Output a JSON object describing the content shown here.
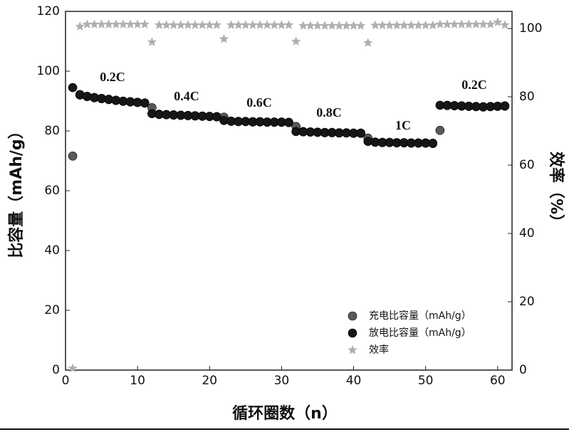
{
  "chart_data": {
    "type": "scatter",
    "xlabel": "循环圈数（n）",
    "ylabel": "比容量（mAh/g）",
    "y2label": "效率（%）",
    "x": [
      1,
      2,
      3,
      4,
      5,
      6,
      7,
      8,
      9,
      10,
      11,
      12,
      13,
      14,
      15,
      16,
      17,
      18,
      19,
      20,
      21,
      22,
      23,
      24,
      25,
      26,
      27,
      28,
      29,
      30,
      31,
      32,
      33,
      34,
      35,
      36,
      37,
      38,
      39,
      40,
      41,
      42,
      43,
      44,
      45,
      46,
      47,
      48,
      49,
      50,
      51,
      52,
      53,
      54,
      55,
      56,
      57,
      58,
      59,
      60,
      61
    ],
    "series": [
      {
        "name": "充电比容量（mAh/g）",
        "color": "#5a5a5a",
        "marker": "circle",
        "values": [
          71.6,
          92,
          91.5,
          91.1,
          90.8,
          90.5,
          90.2,
          89.9,
          89.7,
          89.5,
          89.3,
          87.8,
          85.6,
          85.5,
          85.4,
          85.3,
          85.2,
          85.1,
          85,
          84.9,
          84.8,
          84.6,
          83.3,
          83.2,
          83.2,
          83.1,
          83.1,
          83,
          83,
          83,
          82.9,
          81.5,
          79.8,
          79.7,
          79.6,
          79.5,
          79.5,
          79.4,
          79.4,
          79.3,
          79.3,
          77.6,
          76.3,
          76.2,
          76.2,
          76.1,
          76.1,
          76,
          76,
          76,
          75.9,
          80.2,
          88.6,
          88.5,
          88.4,
          88.3,
          88.2,
          88.1,
          88.2,
          88.3,
          88.4
        ]
      },
      {
        "name": "放电比容量（mAh/g）",
        "color": "#161616",
        "marker": "circle",
        "values": [
          94.5,
          92.2,
          91.6,
          91.2,
          90.9,
          90.6,
          90.3,
          90,
          89.8,
          89.6,
          89.4,
          85.8,
          85.5,
          85.4,
          85.3,
          85.2,
          85.1,
          85,
          84.9,
          84.8,
          84.7,
          83.5,
          83.2,
          83.1,
          83.1,
          83,
          83,
          82.9,
          82.9,
          82.9,
          82.8,
          79.8,
          79.7,
          79.6,
          79.5,
          79.4,
          79.4,
          79.3,
          79.3,
          79.2,
          79.2,
          76.5,
          76.2,
          76.1,
          76.1,
          76,
          76,
          75.9,
          75.9,
          75.9,
          75.8,
          88.6,
          88.5,
          88.4,
          88.3,
          88.2,
          88.1,
          88,
          88.1,
          88.2,
          88.3
        ]
      },
      {
        "name": "效率",
        "color": "#b0b0b0",
        "marker": "star",
        "axis": "y2",
        "values": [
          0.5,
          100.6,
          101.2,
          101.2,
          101.2,
          101.2,
          101.2,
          101.2,
          101.2,
          101.2,
          101.2,
          96,
          101,
          101,
          101,
          101,
          101,
          101,
          101,
          101,
          101,
          96.9,
          101,
          101,
          101,
          101,
          101,
          101,
          101,
          101,
          101,
          96.2,
          100.8,
          100.8,
          100.8,
          100.8,
          100.8,
          100.8,
          100.8,
          100.8,
          100.8,
          95.8,
          100.9,
          100.9,
          100.9,
          100.9,
          100.9,
          100.9,
          100.9,
          100.9,
          100.9,
          101.2,
          101.2,
          101.2,
          101.2,
          101.2,
          101.2,
          101.2,
          101.2,
          101.8,
          101
        ]
      }
    ],
    "annotations": [
      "0.2C",
      "0.4C",
      "0.6C",
      "0.8C",
      "1C",
      "0.2C"
    ],
    "xlim": [
      0,
      62
    ],
    "xticks": [
      0,
      10,
      20,
      30,
      40,
      50,
      60
    ],
    "ylim": [
      0,
      120
    ],
    "yticks": [
      0,
      20,
      40,
      60,
      80,
      100,
      120
    ],
    "y2lim": [
      0,
      105
    ],
    "y2ticks": [
      0,
      20,
      40,
      60,
      80,
      100
    ],
    "legend": "lower right"
  }
}
